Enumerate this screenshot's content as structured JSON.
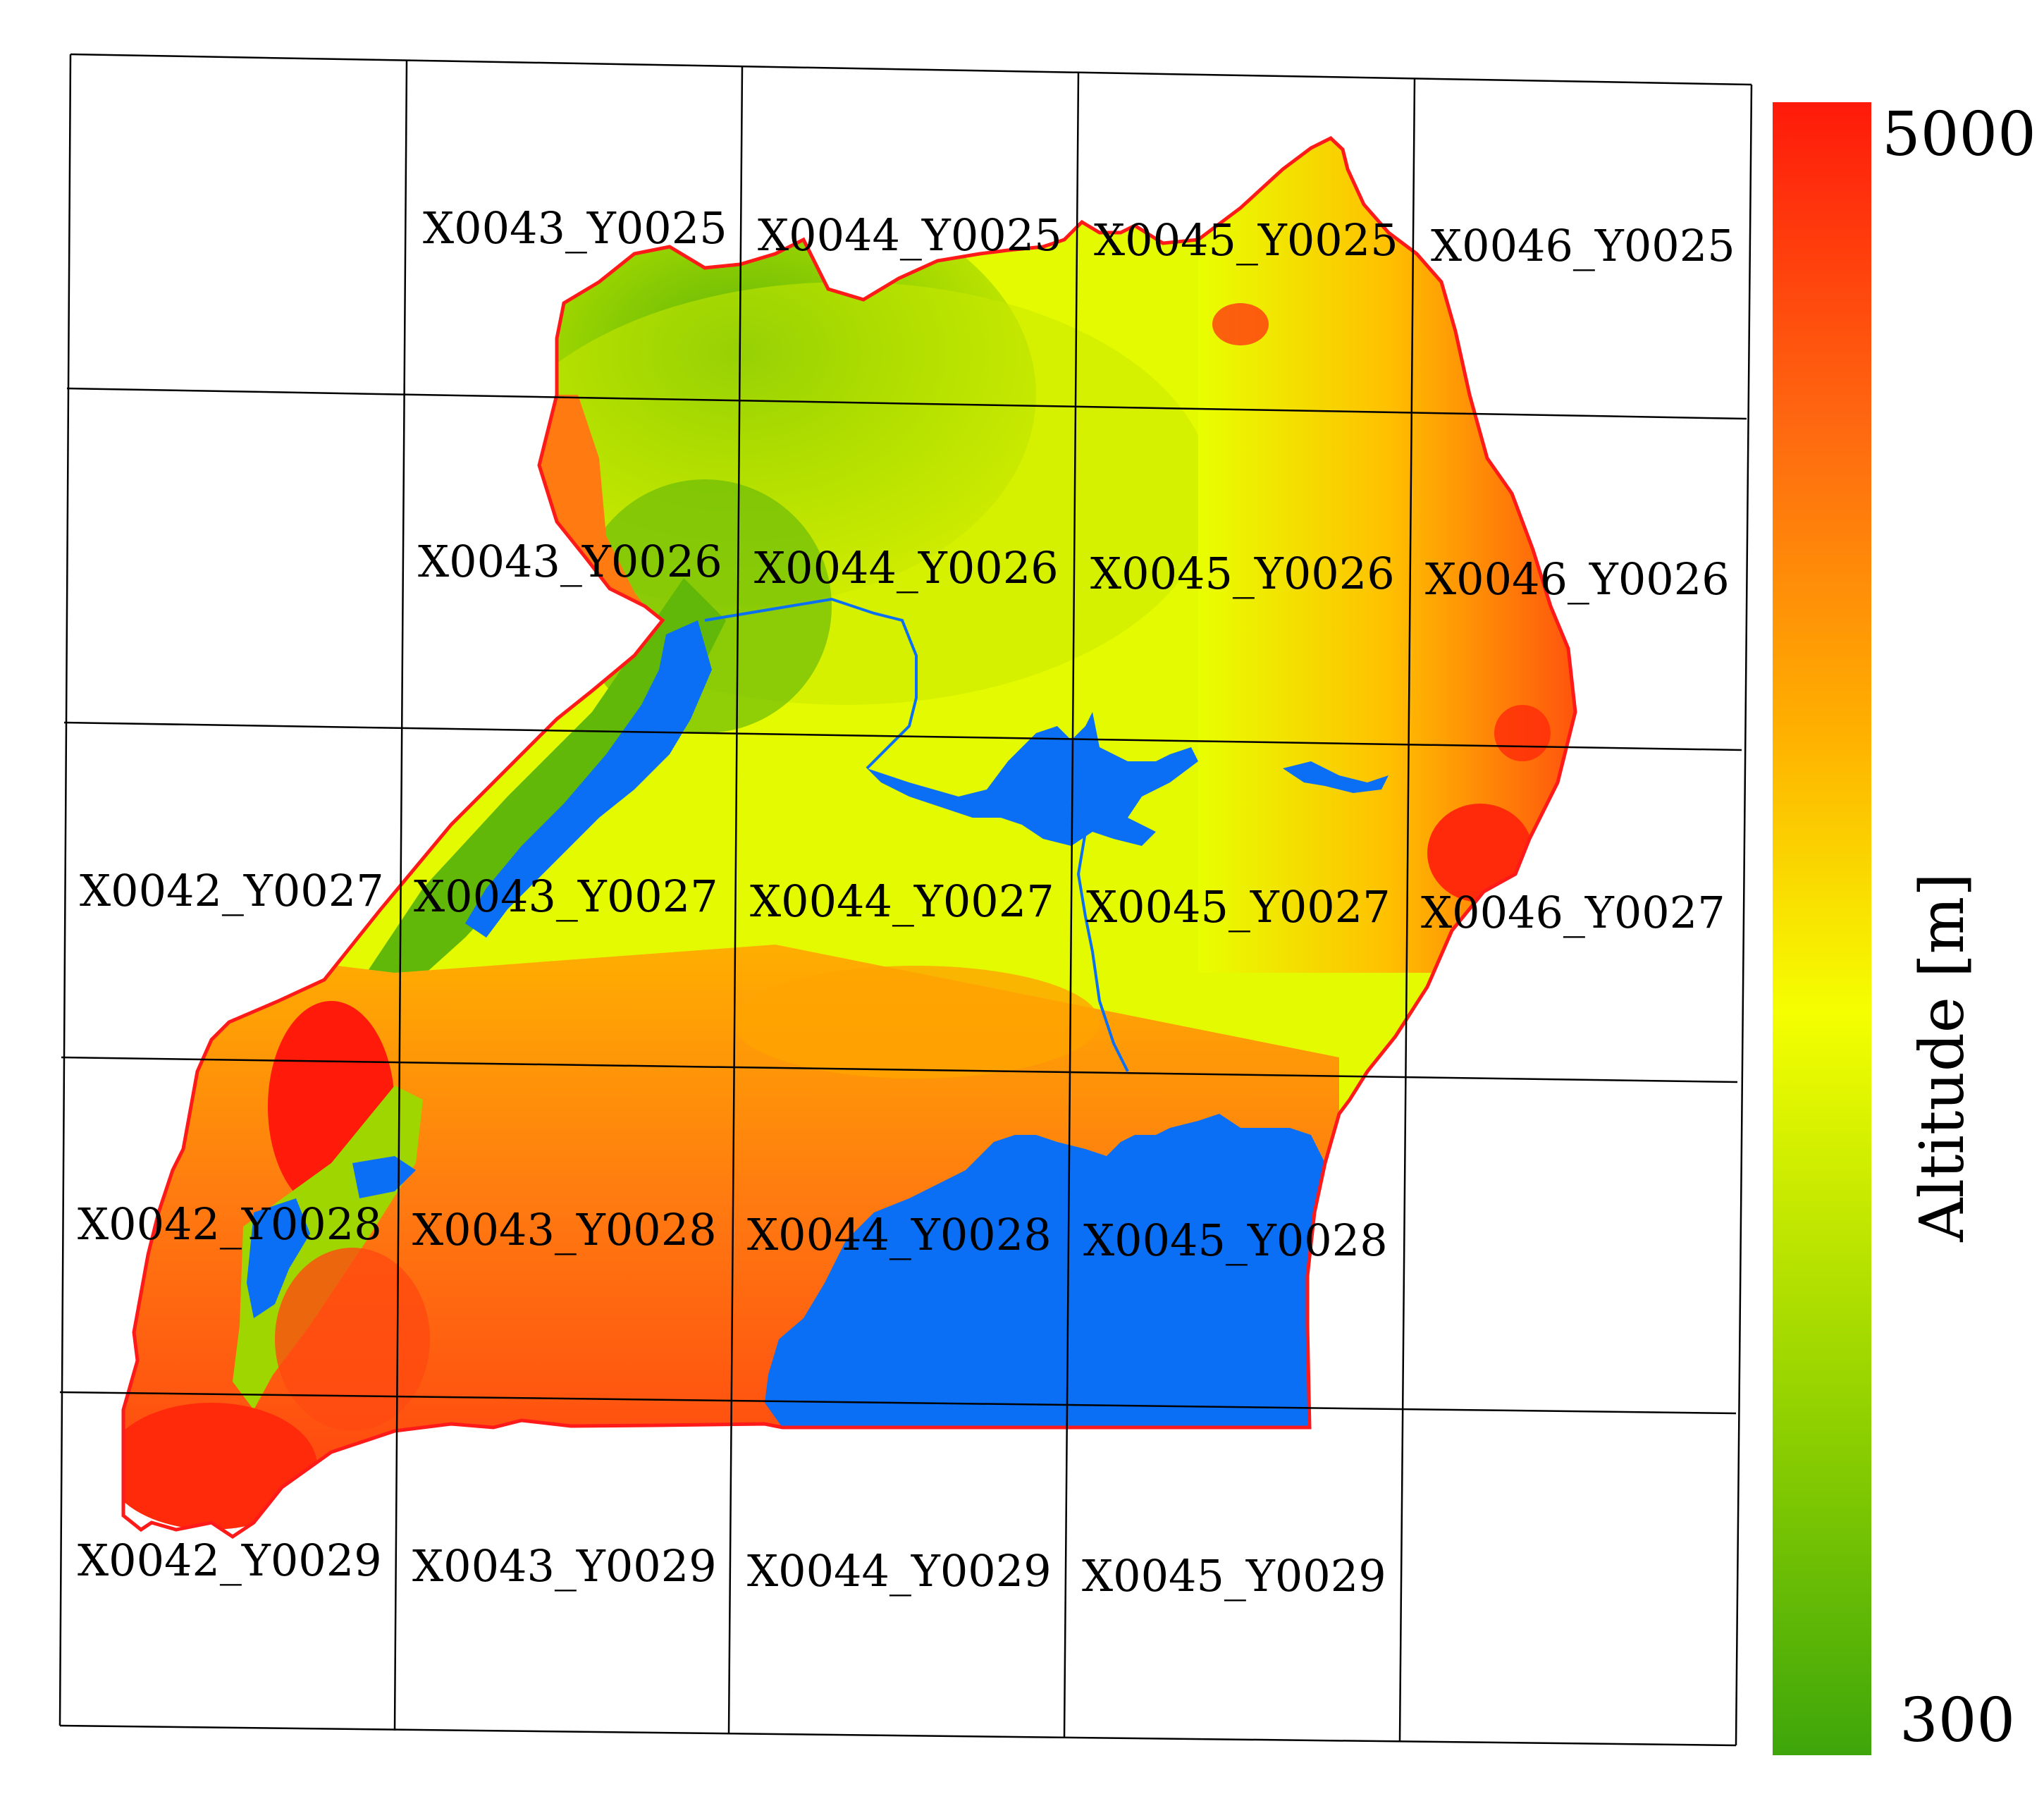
{
  "map": {
    "tiles": [
      {
        "id": "X0043_Y0025",
        "label": "X0043_Y0025"
      },
      {
        "id": "X0044_Y0025",
        "label": "X0044_Y0025"
      },
      {
        "id": "X0045_Y0025",
        "label": "X0045_Y0025"
      },
      {
        "id": "X0046_Y0025",
        "label": "X0046_Y0025"
      },
      {
        "id": "X0043_Y0026",
        "label": "X0043_Y0026"
      },
      {
        "id": "X0044_Y0026",
        "label": "X0044_Y0026"
      },
      {
        "id": "X0045_Y0026",
        "label": "X0045_Y0026"
      },
      {
        "id": "X0046_Y0026",
        "label": "X0046_Y0026"
      },
      {
        "id": "X0042_Y0027",
        "label": "X0042_Y0027"
      },
      {
        "id": "X0043_Y0027",
        "label": "X0043_Y0027"
      },
      {
        "id": "X0044_Y0027",
        "label": "X0044_Y0027"
      },
      {
        "id": "X0045_Y0027",
        "label": "X0045_Y0027"
      },
      {
        "id": "X0046_Y0027",
        "label": "X0046_Y0027"
      },
      {
        "id": "X0042_Y0028",
        "label": "X0042_Y0028"
      },
      {
        "id": "X0043_Y0028",
        "label": "X0043_Y0028"
      },
      {
        "id": "X0044_Y0028",
        "label": "X0044_Y0028"
      },
      {
        "id": "X0045_Y0028",
        "label": "X0045_Y0028"
      },
      {
        "id": "X0042_Y0029",
        "label": "X0042_Y0029"
      },
      {
        "id": "X0043_Y0029",
        "label": "X0043_Y0029"
      },
      {
        "id": "X0044_Y0029",
        "label": "X0044_Y0029"
      },
      {
        "id": "X0045_Y0029",
        "label": "X0045_Y0029"
      }
    ],
    "colors": {
      "water": "#0a6ff5",
      "border": "#ff1a1a",
      "grid": "#000000",
      "low": "#3ea60a",
      "mid": "#f5ff00",
      "high": "#ff1a0a"
    }
  },
  "colorbar": {
    "title": "Altitude [m]",
    "max_label": "5000",
    "min_label": "300",
    "max": 5000,
    "min": 300,
    "gradient": [
      "#3ea60a",
      "#8fd000",
      "#f5ff00",
      "#ffb000",
      "#ff6a10",
      "#ff1a0a"
    ]
  }
}
